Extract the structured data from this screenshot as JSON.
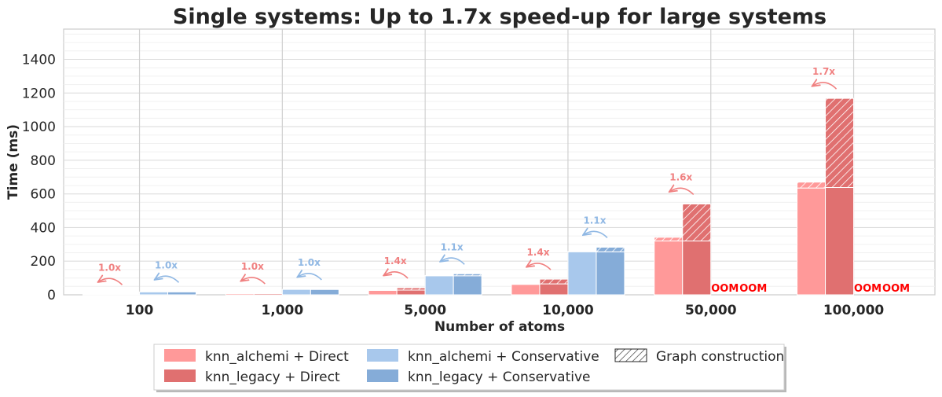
{
  "chart_data": {
    "type": "bar",
    "title": "Single systems: Up to 1.7x speed-up for large systems",
    "xlabel": "Number of atoms",
    "ylabel": "Time (ms)",
    "ylim": [
      0,
      1580
    ],
    "yticks": [
      0,
      200,
      400,
      600,
      800,
      1000,
      1200,
      1400
    ],
    "categories": [
      "100",
      "1,000",
      "5,000",
      "10,000",
      "50,000",
      "100,000"
    ],
    "series": [
      {
        "name": "knn_alchemi + Direct",
        "color": "#ff9999",
        "values": [
          3,
          8,
          28,
          66,
          342,
          670
        ],
        "graph_construction": [
          0,
          1,
          2,
          4,
          22,
          35
        ]
      },
      {
        "name": "knn_legacy + Direct",
        "color": "#e07070",
        "values": [
          3,
          9,
          42,
          93,
          540,
          1168
        ],
        "graph_construction": [
          0,
          2,
          14,
          28,
          220,
          530
        ]
      },
      {
        "name": "knn_alchemi + Conservative",
        "color": "#a8c8ec",
        "values": [
          17,
          32,
          115,
          258,
          null,
          null
        ],
        "graph_construction": [
          0,
          0,
          2,
          2,
          null,
          null
        ]
      },
      {
        "name": "knn_legacy + Conservative",
        "color": "#85acd8",
        "values": [
          17,
          33,
          125,
          283,
          null,
          null
        ],
        "graph_construction": [
          0,
          1,
          12,
          27,
          null,
          null
        ]
      }
    ],
    "hatch_legend": "Graph construction",
    "speedups": [
      {
        "group": 0,
        "pair": "direct",
        "label": "1.0x"
      },
      {
        "group": 0,
        "pair": "conservative",
        "label": "1.0x"
      },
      {
        "group": 1,
        "pair": "direct",
        "label": "1.0x"
      },
      {
        "group": 1,
        "pair": "conservative",
        "label": "1.0x"
      },
      {
        "group": 2,
        "pair": "direct",
        "label": "1.4x"
      },
      {
        "group": 2,
        "pair": "conservative",
        "label": "1.1x"
      },
      {
        "group": 3,
        "pair": "direct",
        "label": "1.4x"
      },
      {
        "group": 3,
        "pair": "conservative",
        "label": "1.1x"
      },
      {
        "group": 4,
        "pair": "direct",
        "label": "1.6x"
      },
      {
        "group": 5,
        "pair": "direct",
        "label": "1.7x"
      }
    ],
    "oom_label": "OOM",
    "oom_groups": [
      4,
      5
    ],
    "legend_placement": "bottom-center"
  }
}
